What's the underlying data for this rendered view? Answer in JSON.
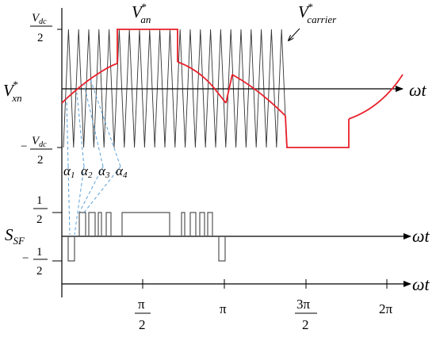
{
  "labels": {
    "vdc_top_num": "V",
    "vdc_top_sub": "dc",
    "vdc_top_den": "2",
    "vdc_bot_minus": "−",
    "vdc_bot_num": "V",
    "vdc_bot_sub": "dc",
    "vdc_bot_den": "2",
    "vxn_main": "V",
    "vxn_star": "*",
    "vxn_sub": "xn",
    "van_main": "V",
    "van_star": "*",
    "van_sub": "an",
    "vcarrier_main": "V",
    "vcarrier_star": "*",
    "vcarrier_sub": "carrier",
    "wt_1": "ωt",
    "wt_2": "ωt",
    "wt_3": "ωt",
    "half_top_num": "1",
    "half_top_den": "2",
    "half_bot_minus": "−",
    "half_bot_num": "1",
    "half_bot_den": "2",
    "ssf_main": "S",
    "ssf_sub": "SF",
    "alpha1": "α",
    "alpha1_sub": "1",
    "alpha2": "α",
    "alpha2_sub": "2",
    "alpha3": "α",
    "alpha3_sub": "3",
    "alpha4": "α",
    "alpha4_sub": "4",
    "tick_pi2_num": "π",
    "tick_pi2_den": "2",
    "tick_pi": "π",
    "tick_3pi2_num": "3π",
    "tick_3pi2_den": "2",
    "tick_2pi": "2π"
  },
  "colors": {
    "reference": "#e8202a",
    "carrier": "#333333",
    "axis": "#000000",
    "dashed": "#5aa0d8",
    "pulse": "#555555"
  }
}
